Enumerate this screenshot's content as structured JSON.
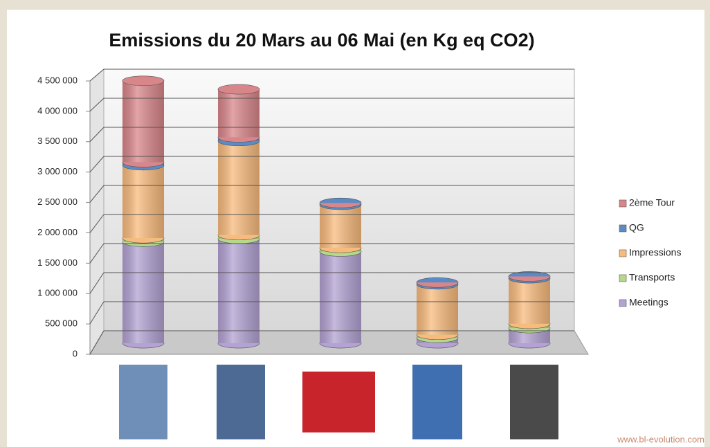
{
  "chart_data": {
    "type": "bar",
    "stacked": true,
    "title": "Emissions du 20 Mars au 06 Mai (en Kg eq CO2)",
    "categories": [
      null,
      null,
      null,
      null,
      null
    ],
    "series": [
      {
        "name": "Meetings",
        "color": "#b3a2d3",
        "values": [
          1670000,
          1720000,
          1510000,
          90000,
          250000
        ]
      },
      {
        "name": "Transports",
        "color": "#b5d88a",
        "values": [
          60000,
          60000,
          60000,
          50000,
          70000
        ]
      },
      {
        "name": "Impressions",
        "color": "#f9bb7d",
        "values": [
          1200000,
          1550000,
          710000,
          830000,
          750000
        ]
      },
      {
        "name": "QG",
        "color": "#5b8bc6",
        "values": [
          50000,
          60000,
          30000,
          30000,
          30000
        ]
      },
      {
        "name": "2ème Tour",
        "color": "#d9868a",
        "values": [
          1340000,
          790000,
          0,
          0,
          0
        ]
      }
    ],
    "ylim": [
      0,
      4500000
    ],
    "yticks": [
      0,
      {
        "value": 500000,
        "label": "500 000"
      },
      {
        "value": 1000000,
        "label": "1 000 000"
      },
      {
        "value": 1500000,
        "label": "1 500 000"
      },
      {
        "value": 2000000,
        "label": "2 000 000"
      },
      {
        "value": 2500000,
        "label": "2 500 000"
      },
      {
        "value": 3000000,
        "label": "3 000 000"
      },
      {
        "value": 3500000,
        "label": "3 500 000"
      },
      {
        "value": 4000000,
        "label": "4 000 000"
      },
      {
        "value": 4500000,
        "label": "4 500 000"
      }
    ],
    "grid": true,
    "legend": "right",
    "watermark": "www.bl-evolution.com"
  }
}
